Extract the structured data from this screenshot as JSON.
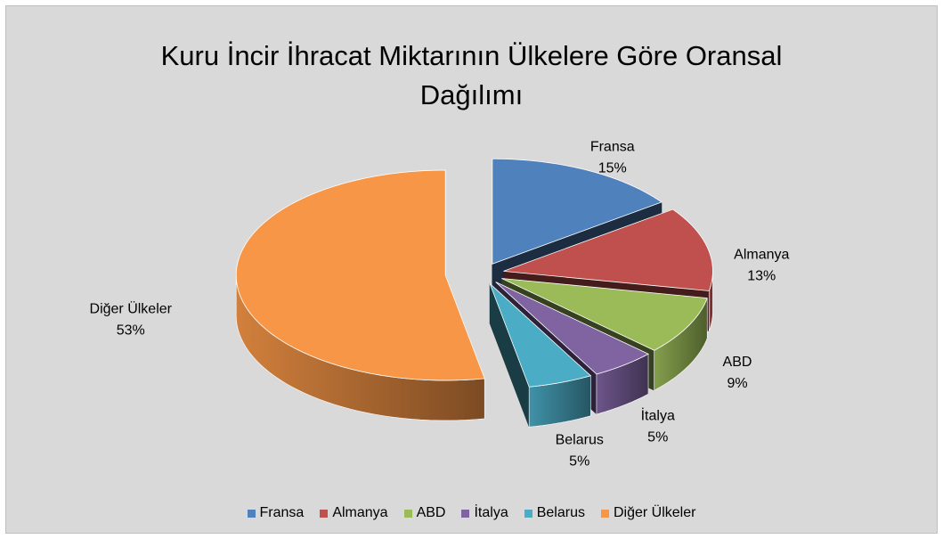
{
  "chart_data": {
    "type": "pie",
    "title": "Kuru İncir İhracat Miktarının Ülkelere Göre Oransal Dağılımı",
    "categories": [
      "Fransa",
      "Almanya",
      "ABD",
      "İtalya",
      "Belarus",
      "Diğer Ülkeler"
    ],
    "values": [
      15,
      13,
      9,
      5,
      5,
      53
    ],
    "value_labels": [
      "15%",
      "13%",
      "9%",
      "5%",
      "5%",
      "53%"
    ],
    "colors": [
      "#4f81bd",
      "#c0504d",
      "#9bbb59",
      "#8064a2",
      "#4bacc6",
      "#f79646"
    ],
    "legend": "bottom"
  }
}
